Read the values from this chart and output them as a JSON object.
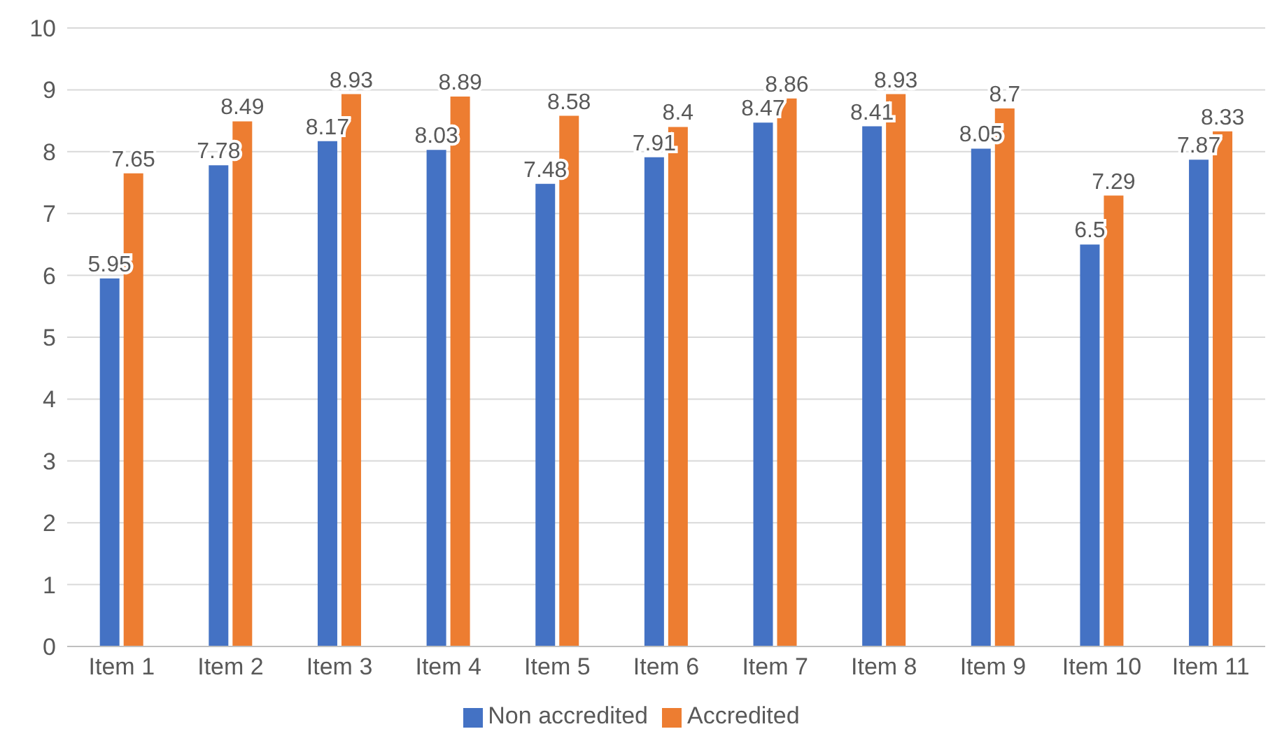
{
  "chart_data": {
    "type": "bar",
    "categories": [
      "Item 1",
      "Item 2",
      "Item 3",
      "Item 4",
      "Item 5",
      "Item 6",
      "Item 7",
      "Item 8",
      "Item 9",
      "Item 10",
      "Item 11"
    ],
    "series": [
      {
        "name": "Non accredited",
        "color": "#4472c4",
        "values": [
          5.95,
          7.78,
          8.17,
          8.03,
          7.48,
          7.91,
          8.47,
          8.41,
          8.05,
          6.5,
          7.87
        ]
      },
      {
        "name": "Accredited",
        "color": "#ed7d31",
        "values": [
          7.65,
          8.49,
          8.93,
          8.89,
          8.58,
          8.4,
          8.86,
          8.93,
          8.7,
          7.29,
          8.33
        ]
      }
    ],
    "ylim": [
      0,
      10
    ],
    "yticks": [
      0,
      1,
      2,
      3,
      4,
      5,
      6,
      7,
      8,
      9,
      10
    ],
    "grid": "y",
    "legend": "bottom",
    "data_labels": true
  }
}
